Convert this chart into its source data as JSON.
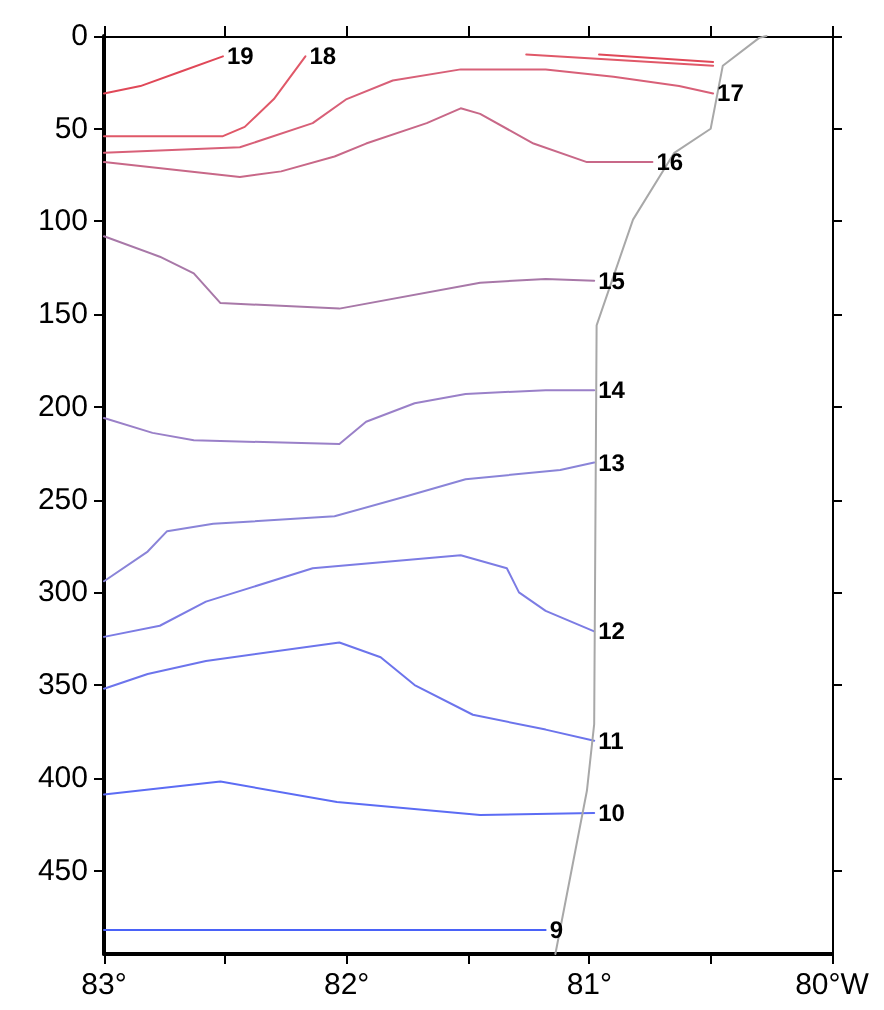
{
  "chart_data": {
    "type": "line",
    "xlim": [
      83,
      80
    ],
    "ylim": [
      495,
      0
    ],
    "xticks": [
      {
        "value": 83,
        "label": "83°"
      },
      {
        "value": 82.5,
        "label": null
      },
      {
        "value": 82,
        "label": "82°"
      },
      {
        "value": 81.5,
        "label": null
      },
      {
        "value": 81,
        "label": "81°"
      },
      {
        "value": 80.5,
        "label": null
      },
      {
        "value": 80,
        "label": "80°W"
      }
    ],
    "yticks": [
      0,
      50,
      100,
      150,
      200,
      250,
      300,
      350,
      400,
      450
    ],
    "grid": false,
    "legend": false,
    "marker": "none",
    "line_style": "solid",
    "series": [
      {
        "name": "19",
        "color": "#e04858",
        "x": [
          83,
          82.85,
          82.68,
          82.51,
          null,
          80.96,
          80.49
        ],
        "values": [
          31,
          27,
          19,
          11,
          null,
          10,
          14
        ]
      },
      {
        "name": "18",
        "color": "#e05868",
        "x": [
          83,
          82.51,
          82.42,
          82.3,
          82.17,
          null,
          81.26,
          80.49
        ],
        "values": [
          54,
          54,
          49,
          34,
          11,
          null,
          10,
          16
        ]
      },
      {
        "name": "17",
        "color": "#d86078",
        "x": [
          83,
          82.44,
          82.14,
          82.0,
          81.81,
          81.53,
          81.18,
          80.9,
          80.63,
          80.49
        ],
        "values": [
          63,
          60,
          47,
          34,
          24,
          18,
          18,
          22,
          27,
          31
        ]
      },
      {
        "name": "16",
        "color": "#c86888",
        "x": [
          83,
          82.44,
          82.27,
          82.05,
          81.92,
          81.67,
          81.53,
          81.45,
          81.23,
          81.01,
          80.74
        ],
        "values": [
          68,
          76,
          73,
          65,
          58,
          47,
          39,
          42,
          58,
          68,
          68
        ]
      },
      {
        "name": "15",
        "color": "#a878a8",
        "x": [
          83,
          82.77,
          82.63,
          82.52,
          82.03,
          81.45,
          81.18,
          80.98
        ],
        "values": [
          108,
          119,
          128,
          144,
          147,
          133,
          131,
          132
        ]
      },
      {
        "name": "14",
        "color": "#9a80c8",
        "x": [
          83,
          82.8,
          82.63,
          82.03,
          81.92,
          81.72,
          81.51,
          81.18,
          80.98
        ],
        "values": [
          206,
          214,
          218,
          220,
          208,
          198,
          193,
          191,
          191
        ]
      },
      {
        "name": "13",
        "color": "#8a84d8",
        "x": [
          83,
          82.82,
          82.74,
          82.55,
          82.05,
          81.75,
          81.51,
          81.12,
          80.98
        ],
        "values": [
          294,
          278,
          267,
          263,
          259,
          248,
          239,
          234,
          230
        ]
      },
      {
        "name": "12",
        "color": "#7c7ce4",
        "x": [
          83,
          82.77,
          82.58,
          82.14,
          81.53,
          81.34,
          81.29,
          81.18,
          80.98
        ],
        "values": [
          324,
          318,
          305,
          287,
          280,
          287,
          300,
          310,
          321
        ]
      },
      {
        "name": "11",
        "color": "#6c74ec",
        "x": [
          83,
          82.82,
          82.58,
          82.03,
          81.86,
          81.72,
          81.48,
          81.18,
          80.98
        ],
        "values": [
          352,
          344,
          337,
          327,
          335,
          350,
          366,
          374,
          380
        ]
      },
      {
        "name": "10",
        "color": "#5c6cf4",
        "x": [
          83,
          82.52,
          82.04,
          81.45,
          80.98
        ],
        "values": [
          409,
          402,
          413,
          420,
          419
        ]
      },
      {
        "name": "9",
        "color": "#4a62f8",
        "x": [
          83,
          81.18
        ],
        "values": [
          482,
          482
        ]
      },
      {
        "color": "#a8a8a8",
        "x": [
          81.14,
          81.01,
          80.98,
          80.97,
          80.82,
          80.65,
          80.5,
          80.45,
          80.3,
          80.27
        ],
        "values": [
          495,
          407,
          371,
          156,
          99,
          63,
          50,
          16,
          1,
          0
        ]
      }
    ]
  }
}
